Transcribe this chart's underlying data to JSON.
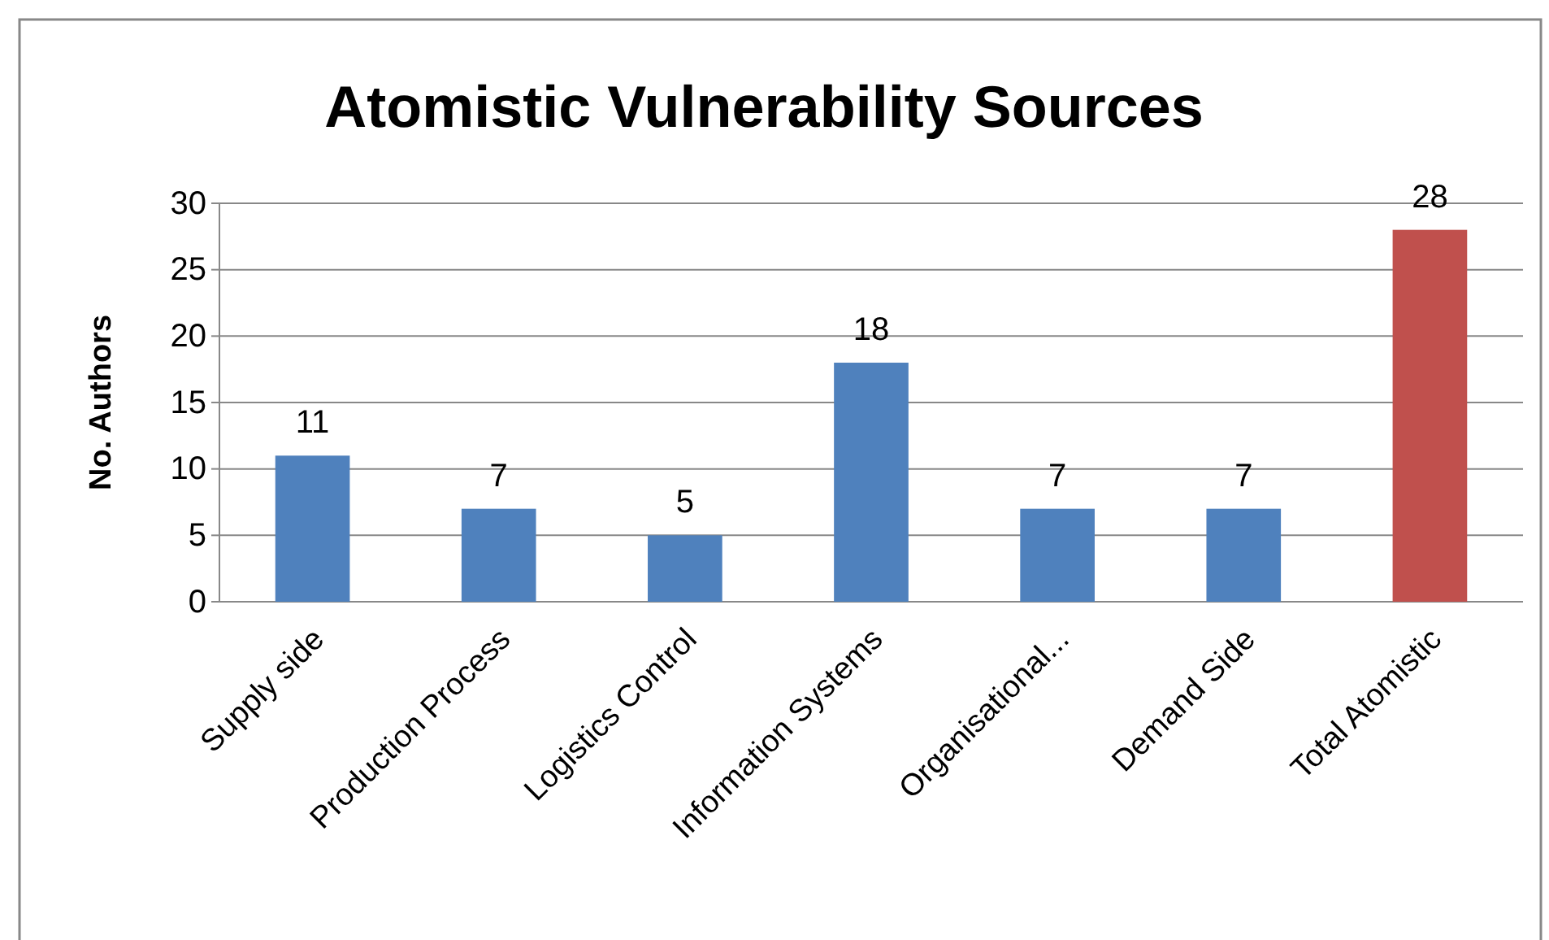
{
  "chart_data": {
    "type": "bar",
    "title": "Atomistic Vulnerability Sources",
    "ylabel": "No. Authors",
    "categories": [
      "Supply side",
      "Production Process",
      "Logistics Control",
      "Information Systems",
      "Organisational...",
      "Demand Side",
      "Total Atomistic"
    ],
    "values": [
      11,
      7,
      5,
      18,
      7,
      7,
      28
    ],
    "colors": [
      "#4f81bd",
      "#4f81bd",
      "#4f81bd",
      "#4f81bd",
      "#4f81bd",
      "#4f81bd",
      "#c0504d"
    ],
    "ylim": [
      0,
      30
    ],
    "yticks": [
      0,
      5,
      10,
      15,
      20,
      25,
      30
    ],
    "grid": "y",
    "data_labels": true
  }
}
